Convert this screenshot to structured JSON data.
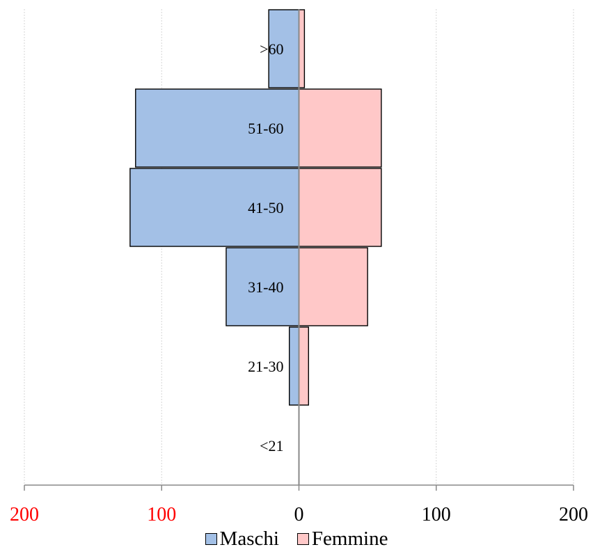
{
  "chart_data": {
    "type": "bar",
    "orientation": "horizontal",
    "layout": "population-pyramid",
    "categories": [
      ">60",
      "51-60",
      "41-50",
      "31-40",
      "21-30",
      "<21"
    ],
    "series": [
      {
        "name": "Maschi",
        "values": [
          22,
          119,
          123,
          53,
          7,
          0
        ],
        "color": "#a3c0e6",
        "side": "left"
      },
      {
        "name": "Femmine",
        "values": [
          4,
          60,
          60,
          50,
          7,
          0
        ],
        "color": "#ffc8c8",
        "side": "right"
      }
    ],
    "xlim": [
      -200,
      200
    ],
    "x_ticks": [
      {
        "value": -200,
        "label": "200",
        "color": "#ff0000"
      },
      {
        "value": -100,
        "label": "100",
        "color": "#ff0000"
      },
      {
        "value": 0,
        "label": "0",
        "color": "#000000"
      },
      {
        "value": 100,
        "label": "100",
        "color": "#000000"
      },
      {
        "value": 200,
        "label": "200",
        "color": "#000000"
      }
    ],
    "grid": "vertical-dotted",
    "legend_position": "bottom",
    "title": "",
    "xlabel": "",
    "ylabel": ""
  }
}
